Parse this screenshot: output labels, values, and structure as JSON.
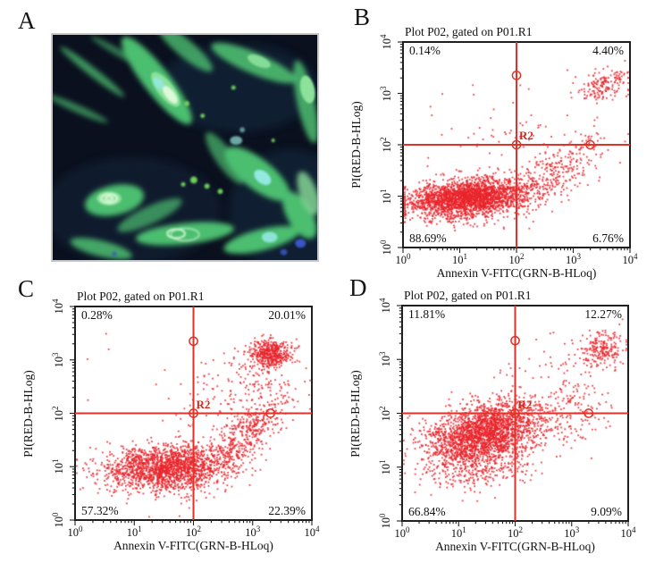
{
  "figure": {
    "panel_labels": {
      "a": "A",
      "b": "B",
      "c": "C",
      "d": "D"
    }
  },
  "panel_a": {
    "content": "Fluorescence micrograph: elongated spindle-shaped cells with green cytoplasm and cyan/blue nuclei on a dark navy background",
    "palette": {
      "bg": "#0a101e",
      "cell": "#4cbe70",
      "cell_light": "#8ce19b",
      "nucleus": "#dcf9da",
      "cyan": "#93e8e0",
      "blue": "#3b55c8",
      "debris": "#6fd05a"
    }
  },
  "chart_data": [
    {
      "panel": "B",
      "type": "scatter",
      "title": "Plot P02, gated on P01.R1",
      "xlabel": "Annexin V-FITC(GRN-B-HLoq)",
      "ylabel": "PI(RED-B-HLog)",
      "x_scale": "log",
      "y_scale": "log",
      "xlim": [
        1,
        10000
      ],
      "ylim": [
        1,
        10000
      ],
      "tick_exponents": [
        0,
        1,
        2,
        3,
        4
      ],
      "point_color": "#e8242b",
      "gate_color": "#e03228",
      "gate": {
        "label": "R2",
        "x_value": "100",
        "y_value": "100",
        "x_log": 2,
        "y_log": 2,
        "handles_log": [
          [
            2,
            3.35
          ],
          [
            2,
            2
          ],
          [
            3.3,
            2
          ]
        ]
      },
      "quadrant_percent": {
        "upper_left": "0.14%",
        "upper_right": "4.40%",
        "lower_left": "88.69%",
        "lower_right": "6.76%"
      },
      "seed": 11,
      "clusters_log10": [
        {
          "n": 2400,
          "cx": 1.15,
          "cy": 0.98,
          "sx": 0.52,
          "sy": 0.18,
          "rho": 0.25
        },
        {
          "n": 110,
          "cx": 1.0,
          "cy": 0.68,
          "sx": 0.45,
          "sy": 0.15,
          "rho": 0
        },
        {
          "n": 300,
          "cx": 2.7,
          "cy": 1.45,
          "sx": 0.45,
          "sy": 0.38,
          "rho": 0.75
        },
        {
          "n": 170,
          "cx": 3.55,
          "cy": 3.15,
          "sx": 0.22,
          "sy": 0.16,
          "rho": 0.2
        },
        {
          "n": 60,
          "cx": 1.9,
          "cy": 2.05,
          "sx": 0.6,
          "sy": 0.45,
          "rho": 0
        },
        {
          "n": 3,
          "cx": 0.5,
          "cy": 2.9,
          "sx": 0.3,
          "sy": 0.35,
          "rho": 0
        }
      ]
    },
    {
      "panel": "C",
      "type": "scatter",
      "title": "Plot P02, gated on P01.R1",
      "xlabel": "Annexin V-FITC(GRN-B-HLoq)",
      "ylabel": "PI(RED-B-HLog)",
      "x_scale": "log",
      "y_scale": "log",
      "xlim": [
        1,
        10000
      ],
      "ylim": [
        1,
        10000
      ],
      "tick_exponents": [
        0,
        1,
        2,
        3,
        4
      ],
      "point_color": "#e8242b",
      "gate_color": "#e03228",
      "gate": {
        "label": "R2",
        "x_value": "100",
        "y_value": "100",
        "x_log": 2,
        "y_log": 2,
        "handles_log": [
          [
            2,
            3.35
          ],
          [
            2,
            2
          ],
          [
            3.3,
            2
          ]
        ]
      },
      "quadrant_percent": {
        "upper_left": "0.28%",
        "upper_right": "20.01%",
        "lower_left": "57.32%",
        "lower_right": "22.39%"
      },
      "seed": 22,
      "clusters_log10": [
        {
          "n": 1600,
          "cx": 1.5,
          "cy": 1.0,
          "sx": 0.52,
          "sy": 0.2,
          "rho": 0.2
        },
        {
          "n": 140,
          "cx": 1.6,
          "cy": 0.72,
          "sx": 0.5,
          "sy": 0.16,
          "rho": 0
        },
        {
          "n": 500,
          "cx": 2.8,
          "cy": 1.5,
          "sx": 0.4,
          "sy": 0.42,
          "rho": 0.8
        },
        {
          "n": 430,
          "cx": 3.3,
          "cy": 3.12,
          "sx": 0.18,
          "sy": 0.13,
          "rho": 0.1
        },
        {
          "n": 130,
          "cx": 3.2,
          "cy": 2.75,
          "sx": 0.35,
          "sy": 0.35,
          "rho": 0.3
        },
        {
          "n": 90,
          "cx": 2.4,
          "cy": 2.2,
          "sx": 0.55,
          "sy": 0.5,
          "rho": 0.2
        },
        {
          "n": 4,
          "cx": 0.45,
          "cy": 2.9,
          "sx": 0.3,
          "sy": 0.35,
          "rho": 0
        }
      ]
    },
    {
      "panel": "D",
      "type": "scatter",
      "title": "Plot P02, gated on P01.R1",
      "xlabel": "Annexin V-FITC(GRN-B-HLoq)",
      "ylabel": "PI(RED-B-HLog)",
      "x_scale": "log",
      "y_scale": "log",
      "xlim": [
        1,
        10000
      ],
      "ylim": [
        1,
        10000
      ],
      "tick_exponents": [
        0,
        1,
        2,
        3,
        4
      ],
      "point_color": "#e8242b",
      "gate_color": "#e03228",
      "gate": {
        "label": "R2",
        "x_value": "100",
        "y_value": "100",
        "x_log": 2,
        "y_log": 2,
        "handles_log": [
          [
            2,
            3.35
          ],
          [
            2,
            2
          ],
          [
            3.3,
            2
          ]
        ]
      },
      "quadrant_percent": {
        "upper_left": "11.81%",
        "upper_right": "12.27%",
        "lower_left": "66.84%",
        "lower_right": "9.09%"
      },
      "seed": 33,
      "clusters_log10": [
        {
          "n": 2300,
          "cx": 1.45,
          "cy": 1.62,
          "sx": 0.5,
          "sy": 0.3,
          "rho": 0.35
        },
        {
          "n": 260,
          "cx": 1.35,
          "cy": 1.0,
          "sx": 0.45,
          "sy": 0.22,
          "rho": 0.2
        },
        {
          "n": 210,
          "cx": 3.55,
          "cy": 3.2,
          "sx": 0.2,
          "sy": 0.17,
          "rho": 0.2
        },
        {
          "n": 160,
          "cx": 3.0,
          "cy": 2.0,
          "sx": 0.4,
          "sy": 0.35,
          "rho": 0.4
        },
        {
          "n": 50,
          "cx": 2.7,
          "cy": 2.9,
          "sx": 0.45,
          "sy": 0.3,
          "rho": 0
        }
      ]
    }
  ]
}
